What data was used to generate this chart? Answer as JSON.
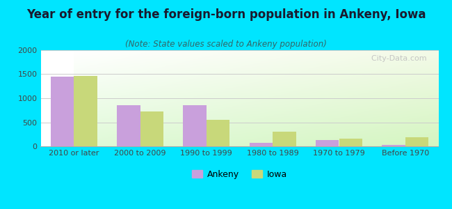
{
  "title": "Year of entry for the foreign-born population in Ankeny, Iowa",
  "subtitle": "(Note: State values scaled to Ankeny population)",
  "categories": [
    "2010 or later",
    "2000 to 2009",
    "1990 to 1999",
    "1980 to 1989",
    "1970 to 1979",
    "Before 1970"
  ],
  "ankeny_values": [
    1455,
    860,
    862,
    70,
    130,
    30
  ],
  "iowa_values": [
    1460,
    725,
    550,
    310,
    155,
    185
  ],
  "ankeny_color": "#c9a0dc",
  "iowa_color": "#c8d87a",
  "background_outer": "#00e5ff",
  "ylim": [
    0,
    2000
  ],
  "yticks": [
    0,
    500,
    1000,
    1500,
    2000
  ],
  "bar_width": 0.35,
  "title_fontsize": 12,
  "subtitle_fontsize": 8.5,
  "tick_fontsize": 8,
  "legend_fontsize": 9
}
